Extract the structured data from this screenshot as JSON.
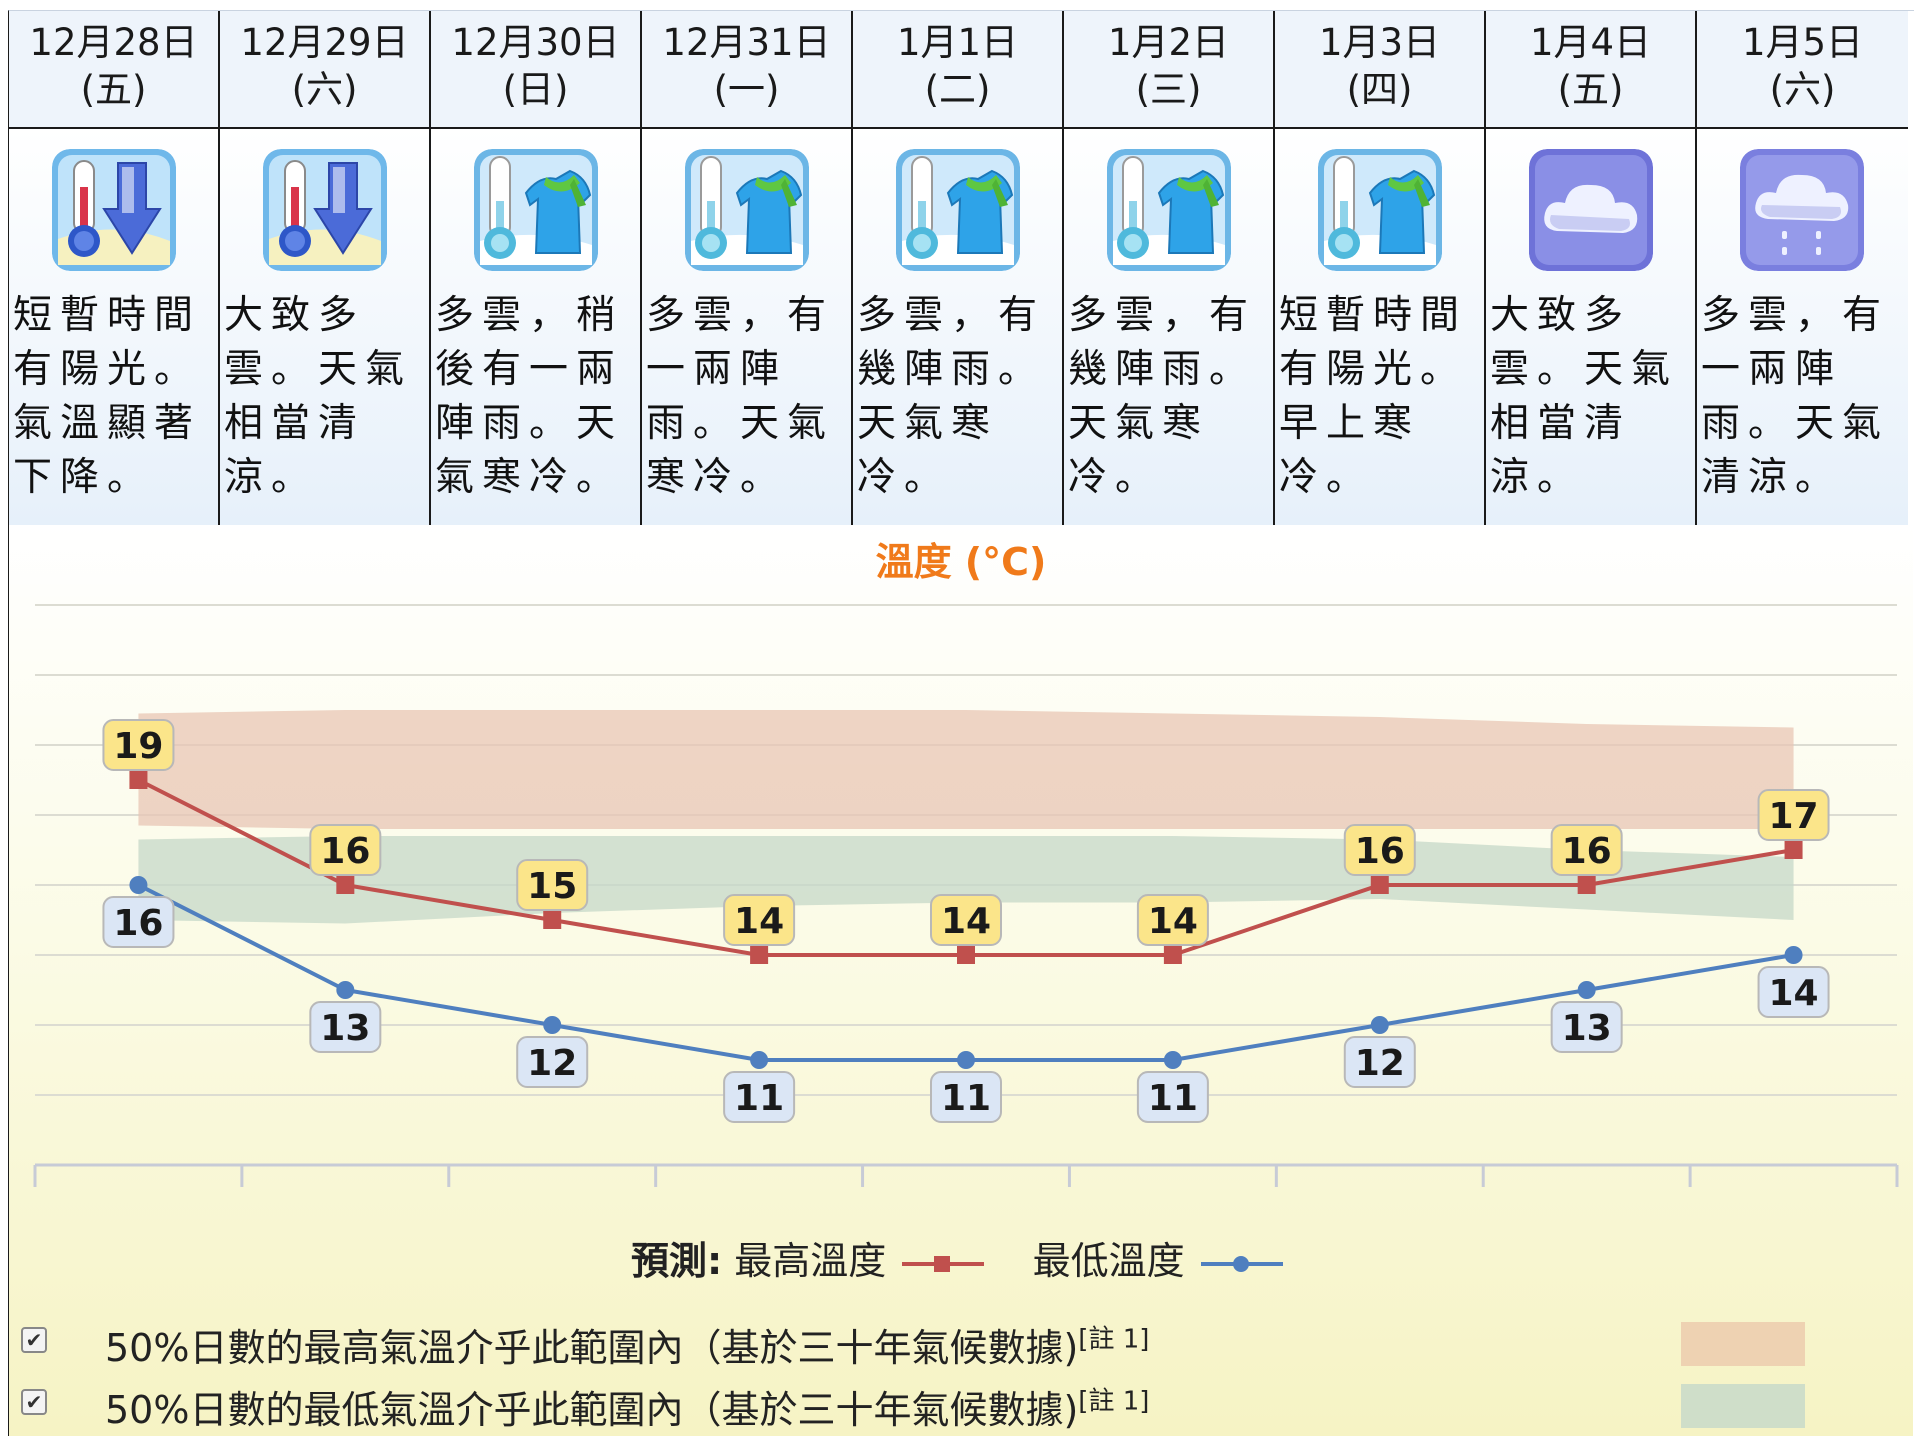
{
  "forecast": [
    {
      "date": "12月28日",
      "weekday": "(五)",
      "icon": "temperature-drop-icon",
      "desc": "短暫時間有陽光。氣溫顯著下降。"
    },
    {
      "date": "12月29日",
      "weekday": "(六)",
      "icon": "temperature-drop-icon",
      "desc": "大致多雲。天氣相當清涼。"
    },
    {
      "date": "12月30日",
      "weekday": "(日)",
      "icon": "cold-icon",
      "desc": "多雲，稍後有一兩陣雨。天氣寒冷。"
    },
    {
      "date": "12月31日",
      "weekday": "(一)",
      "icon": "cold-icon",
      "desc": "多雲，有一兩陣雨。天氣寒冷。"
    },
    {
      "date": "1月1日",
      "weekday": "(二)",
      "icon": "cold-icon",
      "desc": "多雲，有幾陣雨。天氣寒冷。"
    },
    {
      "date": "1月2日",
      "weekday": "(三)",
      "icon": "cold-icon",
      "desc": "多雲，有幾陣雨。天氣寒冷。"
    },
    {
      "date": "1月3日",
      "weekday": "(四)",
      "icon": "cold-icon",
      "desc": "短暫時間有陽光。早上寒冷。"
    },
    {
      "date": "1月4日",
      "weekday": "(五)",
      "icon": "cloudy-icon",
      "desc": "大致多雲。天氣相當清涼。"
    },
    {
      "date": "1月5日",
      "weekday": "(六)",
      "icon": "light-rain-icon",
      "desc": "多雲，有一兩陣雨。天氣清涼。"
    }
  ],
  "chart_data": {
    "type": "line",
    "title": "溫度 (°C)",
    "categories": [
      "12月28日",
      "12月29日",
      "12月30日",
      "12月31日",
      "1月1日",
      "1月2日",
      "1月3日",
      "1月4日",
      "1月5日"
    ],
    "series": [
      {
        "name": "最高溫度",
        "values": [
          19,
          16,
          15,
          14,
          14,
          14,
          16,
          16,
          17
        ],
        "color": "#c0504d"
      },
      {
        "name": "最低溫度",
        "values": [
          16,
          13,
          12,
          11,
          11,
          11,
          12,
          13,
          14
        ],
        "color": "#4f7fbf"
      }
    ],
    "bands": [
      {
        "lower": [
          17.7,
          17.6,
          17.6,
          17.6,
          17.6,
          17.6,
          17.6,
          17.6,
          17.6
        ],
        "upper": [
          20.9,
          21.0,
          21.0,
          21.0,
          21.0,
          20.9,
          20.8,
          20.6,
          20.5
        ],
        "color": "#e8c6b4"
      },
      {
        "lower": [
          15.0,
          14.9,
          15.2,
          15.4,
          15.5,
          15.5,
          15.6,
          15.3,
          15.0
        ],
        "upper": [
          17.3,
          17.4,
          17.4,
          17.4,
          17.4,
          17.4,
          17.3,
          17.0,
          16.8
        ],
        "color": "#c6d8c8"
      }
    ],
    "ylim": [
      8,
      24
    ],
    "grid": true,
    "legend_placement": "bottom"
  },
  "legend": {
    "prefix": "預測:",
    "max_label": "最高溫度",
    "min_label": "最低溫度",
    "check_glyph": "✔",
    "band_max_text": "50%日數的最高氣溫介乎此範圍內（基於三十年氣候數據)",
    "band_min_text": "50%日數的最低氣溫介乎此範圍內（基於三十年氣候數據)",
    "note": "[註 1]"
  },
  "colors": {
    "label_max_bg": "#fbe58a",
    "label_min_bg": "#dbe6f5",
    "title": "#f07a1a"
  }
}
